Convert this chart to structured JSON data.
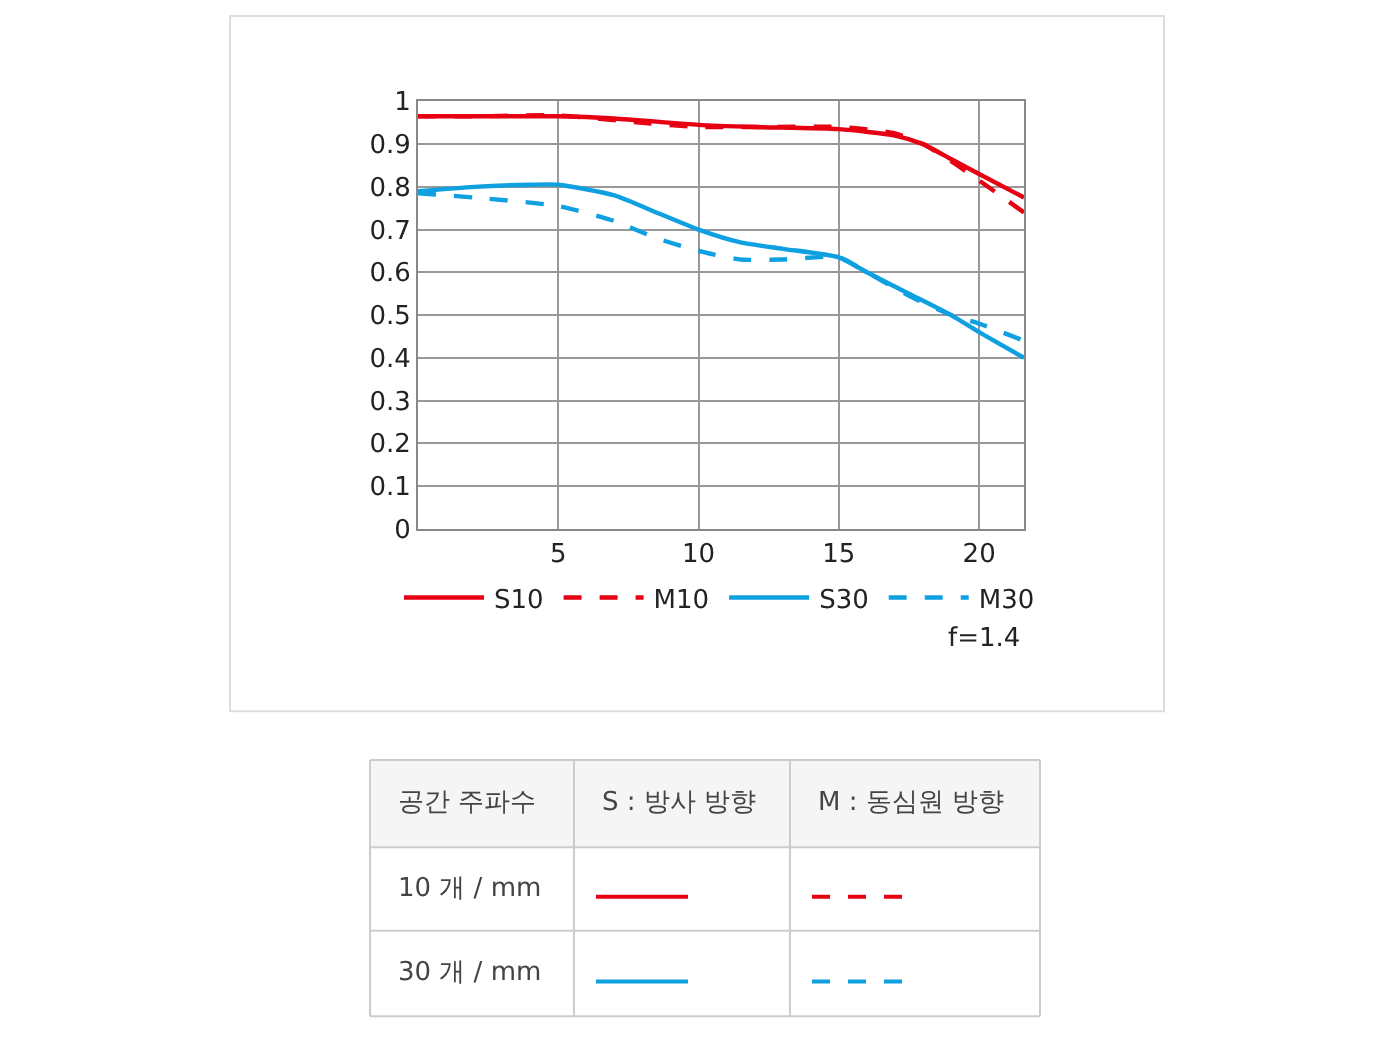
{
  "chart_data": {
    "type": "line",
    "xlim": [
      0,
      21.6
    ],
    "xticks": [
      5,
      10,
      15,
      20
    ],
    "ylim": [
      0,
      1
    ],
    "yticks": [
      0,
      0.1,
      0.2,
      0.3,
      0.4,
      0.5,
      0.6,
      0.7,
      0.8,
      0.9,
      1
    ],
    "grid": true,
    "legend": "bottom",
    "marker": "none",
    "series": [
      {
        "name": "S10",
        "color": "#e60012",
        "line_style": "solid",
        "x": [
          0,
          2,
          5,
          7,
          10,
          12,
          15,
          17,
          18,
          19,
          20,
          21.6
        ],
        "values": [
          0.965,
          0.965,
          0.965,
          0.96,
          0.945,
          0.94,
          0.935,
          0.92,
          0.9,
          0.865,
          0.83,
          0.775
        ]
      },
      {
        "name": "M10",
        "color": "#e60012",
        "line_style": "dashed",
        "x": [
          0,
          2,
          5,
          8,
          10,
          12,
          15,
          17,
          18,
          19,
          20,
          21.6
        ],
        "values": [
          0.965,
          0.965,
          0.967,
          0.95,
          0.94,
          0.94,
          0.94,
          0.925,
          0.9,
          0.86,
          0.815,
          0.74
        ]
      },
      {
        "name": "S30",
        "color": "#0ea0e0",
        "line_style": "solid",
        "x": [
          0,
          2,
          4,
          5,
          7,
          8.5,
          10,
          11.5,
          13,
          15,
          16,
          17.5,
          19,
          20,
          21.6
        ],
        "values": [
          0.79,
          0.8,
          0.805,
          0.805,
          0.78,
          0.74,
          0.7,
          0.67,
          0.655,
          0.635,
          0.6,
          0.55,
          0.5,
          0.46,
          0.4
        ]
      },
      {
        "name": "M30",
        "color": "#0ea0e0",
        "line_style": "dashed",
        "x": [
          0,
          2,
          5,
          7,
          8.5,
          10,
          11.5,
          13,
          15,
          16,
          17.5,
          19,
          20,
          21.6
        ],
        "values": [
          0.785,
          0.775,
          0.755,
          0.72,
          0.68,
          0.65,
          0.63,
          0.63,
          0.635,
          0.6,
          0.545,
          0.5,
          0.48,
          0.44
        ]
      }
    ],
    "annotations": [
      "f=1.4",
      "공간 주파수",
      "S : 방사 방향",
      "M : 동심원 방향",
      "10 개 / mm",
      "30 개 / mm"
    ]
  }
}
